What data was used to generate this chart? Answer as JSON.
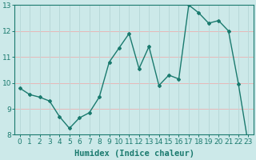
{
  "x": [
    0,
    1,
    2,
    3,
    4,
    5,
    6,
    7,
    8,
    9,
    10,
    11,
    12,
    13,
    14,
    15,
    16,
    17,
    18,
    19,
    20,
    21,
    22,
    23
  ],
  "y": [
    9.8,
    9.55,
    9.45,
    9.3,
    8.7,
    8.25,
    8.65,
    8.85,
    9.45,
    10.8,
    11.35,
    11.9,
    10.55,
    11.4,
    9.9,
    10.3,
    10.15,
    13.0,
    12.7,
    12.3,
    12.4,
    12.0,
    9.95,
    7.6
  ],
  "xlabel": "Humidex (Indice chaleur)",
  "ylim": [
    8,
    13
  ],
  "xlim": [
    -0.5,
    23.5
  ],
  "yticks": [
    8,
    9,
    10,
    11,
    12,
    13
  ],
  "xticks": [
    0,
    1,
    2,
    3,
    4,
    5,
    6,
    7,
    8,
    9,
    10,
    11,
    12,
    13,
    14,
    15,
    16,
    17,
    18,
    19,
    20,
    21,
    22,
    23
  ],
  "line_color": "#1a7a6e",
  "marker": "D",
  "marker_size": 2.0,
  "bg_color": "#cce9e9",
  "grid_color_h": "#e8b8b8",
  "grid_color_v": "#b8d8d8",
  "axes_bg": "#cce9e9",
  "xlabel_fontsize": 7.5,
  "tick_fontsize": 6.5,
  "linewidth": 1.0
}
